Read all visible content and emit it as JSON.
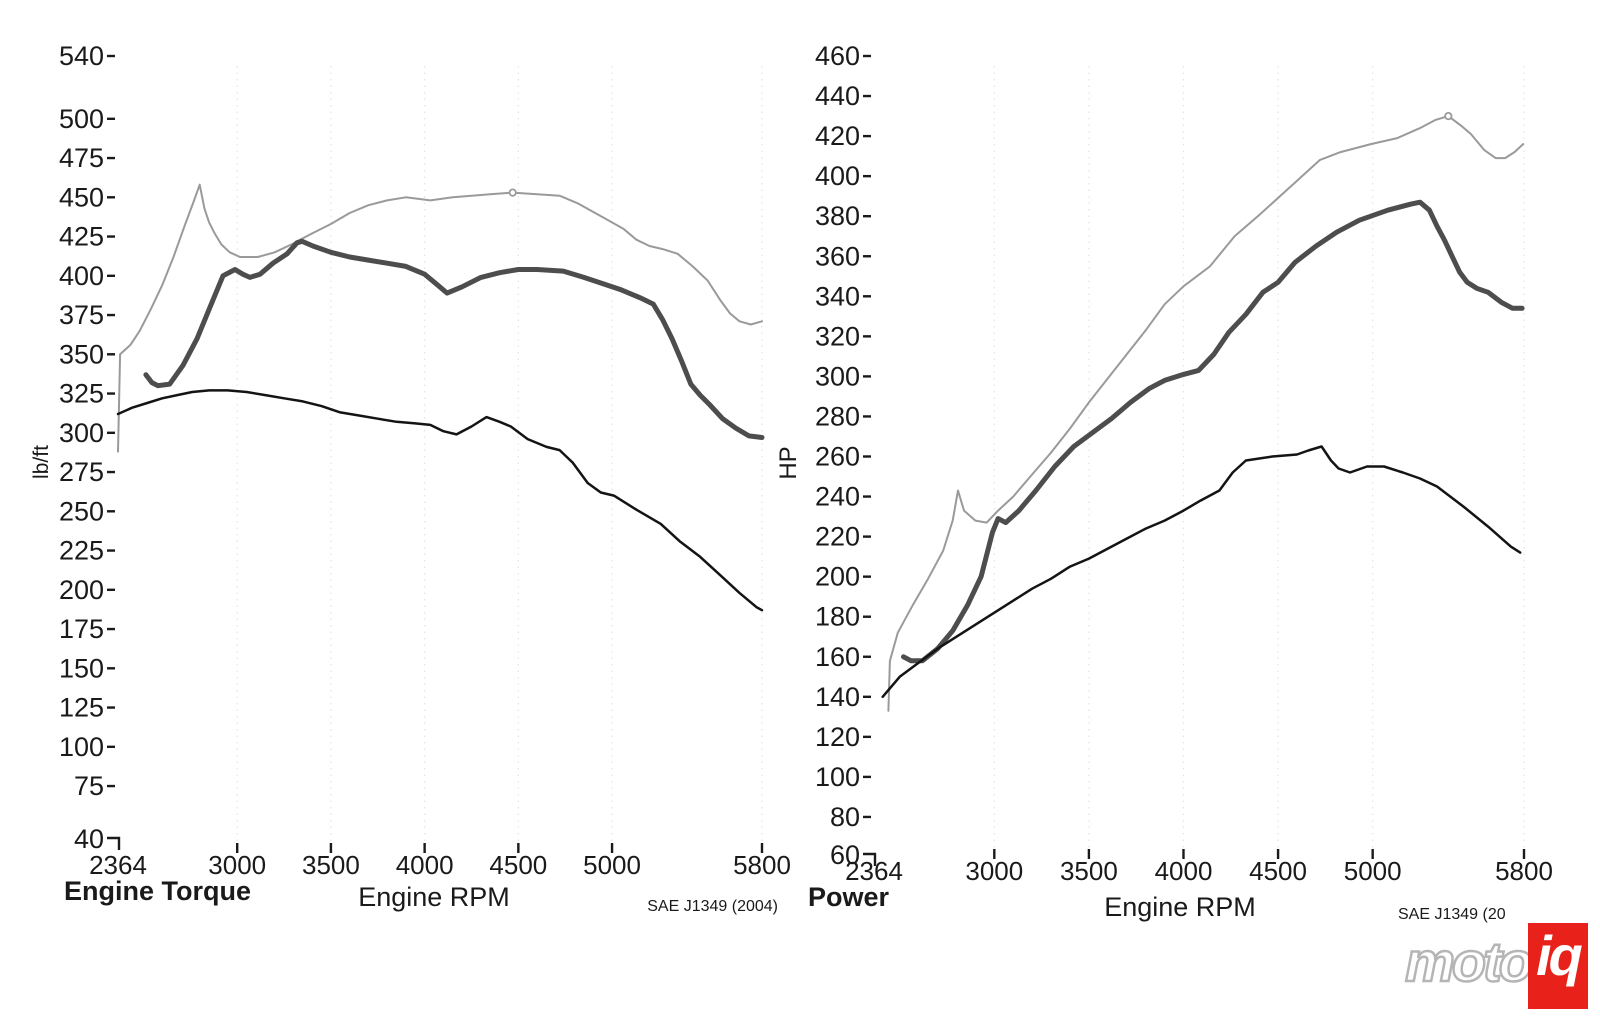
{
  "chart_data": [
    {
      "type": "line",
      "title": "Engine Torque",
      "xlabel": "Engine RPM",
      "ylabel": "lb/ft",
      "note": "SAE J1349 (2004)",
      "xlim": [
        2364,
        5800
      ],
      "ylim": [
        40,
        540
      ],
      "x_ticks": [
        2364,
        3000,
        3500,
        4000,
        4500,
        5000,
        5800
      ],
      "y_ticks": [
        540,
        500,
        475,
        450,
        425,
        400,
        375,
        350,
        325,
        300,
        275,
        250,
        225,
        200,
        175,
        150,
        125,
        100,
        75,
        40
      ],
      "grid": "faint-dotted-vertical",
      "legend": "none",
      "series": [
        {
          "name": "run-light-gray",
          "color": "#9a9a9a",
          "width": 2,
          "marker_at": [
            4470,
            453
          ],
          "points": [
            [
              2364,
              288
            ],
            [
              2375,
              350
            ],
            [
              2430,
              356
            ],
            [
              2480,
              365
            ],
            [
              2540,
              379
            ],
            [
              2600,
              394
            ],
            [
              2660,
              412
            ],
            [
              2720,
              432
            ],
            [
              2770,
              448
            ],
            [
              2800,
              458
            ],
            [
              2825,
              443
            ],
            [
              2850,
              434
            ],
            [
              2880,
              427
            ],
            [
              2915,
              420
            ],
            [
              2960,
              415
            ],
            [
              3015,
              412
            ],
            [
              3110,
              412
            ],
            [
              3200,
              415
            ],
            [
              3290,
              420
            ],
            [
              3320,
              422
            ],
            [
              3400,
              427
            ],
            [
              3500,
              433
            ],
            [
              3600,
              440
            ],
            [
              3700,
              445
            ],
            [
              3800,
              448
            ],
            [
              3900,
              450
            ],
            [
              4030,
              448
            ],
            [
              4150,
              450
            ],
            [
              4250,
              451
            ],
            [
              4350,
              452
            ],
            [
              4470,
              453
            ],
            [
              4600,
              452
            ],
            [
              4720,
              451
            ],
            [
              4820,
              446
            ],
            [
              4970,
              436
            ],
            [
              5060,
              430
            ],
            [
              5130,
              423
            ],
            [
              5200,
              419
            ],
            [
              5270,
              417
            ],
            [
              5350,
              414
            ],
            [
              5430,
              406
            ],
            [
              5510,
              397
            ],
            [
              5580,
              384
            ],
            [
              5630,
              376
            ],
            [
              5680,
              371
            ],
            [
              5740,
              369
            ],
            [
              5800,
              371
            ]
          ]
        },
        {
          "name": "run-dark-gray-thick",
          "color": "#4d4d4d",
          "width": 5,
          "points": [
            [
              2513,
              337
            ],
            [
              2545,
              332
            ],
            [
              2577,
              330
            ],
            [
              2640,
              331
            ],
            [
              2711,
              343
            ],
            [
              2786,
              360
            ],
            [
              2855,
              380
            ],
            [
              2924,
              400
            ],
            [
              2988,
              404
            ],
            [
              3030,
              401
            ],
            [
              3068,
              399
            ],
            [
              3122,
              401
            ],
            [
              3191,
              408
            ],
            [
              3266,
              414
            ],
            [
              3319,
              421
            ],
            [
              3346,
              422
            ],
            [
              3404,
              419
            ],
            [
              3500,
              415
            ],
            [
              3600,
              412
            ],
            [
              3700,
              410
            ],
            [
              3800,
              408
            ],
            [
              3900,
              406
            ],
            [
              4000,
              401
            ],
            [
              4070,
              394
            ],
            [
              4120,
              389
            ],
            [
              4200,
              393
            ],
            [
              4300,
              399
            ],
            [
              4400,
              402
            ],
            [
              4500,
              404
            ],
            [
              4600,
              404
            ],
            [
              4740,
              403
            ],
            [
              4850,
              399
            ],
            [
              4950,
              395
            ],
            [
              5050,
              391
            ],
            [
              5150,
              386
            ],
            [
              5220,
              382
            ],
            [
              5270,
              372
            ],
            [
              5320,
              360
            ],
            [
              5370,
              346
            ],
            [
              5420,
              331
            ],
            [
              5470,
              324
            ],
            [
              5520,
              318
            ],
            [
              5590,
              309
            ],
            [
              5660,
              303
            ],
            [
              5730,
              298
            ],
            [
              5800,
              297
            ]
          ]
        },
        {
          "name": "run-black",
          "color": "#141414",
          "width": 2.5,
          "points": [
            [
              2364,
              312
            ],
            [
              2440,
              316
            ],
            [
              2520,
              319
            ],
            [
              2600,
              322
            ],
            [
              2680,
              324
            ],
            [
              2760,
              326
            ],
            [
              2850,
              327
            ],
            [
              2950,
              327
            ],
            [
              3050,
              326
            ],
            [
              3150,
              324
            ],
            [
              3250,
              322
            ],
            [
              3350,
              320
            ],
            [
              3450,
              317
            ],
            [
              3550,
              313
            ],
            [
              3650,
              311
            ],
            [
              3750,
              309
            ],
            [
              3850,
              307
            ],
            [
              3950,
              306
            ],
            [
              4030,
              305
            ],
            [
              4100,
              301
            ],
            [
              4170,
              299
            ],
            [
              4250,
              304
            ],
            [
              4330,
              310
            ],
            [
              4400,
              307
            ],
            [
              4460,
              304
            ],
            [
              4550,
              296
            ],
            [
              4650,
              291
            ],
            [
              4720,
              289
            ],
            [
              4790,
              281
            ],
            [
              4870,
              268
            ],
            [
              4940,
              262
            ],
            [
              5010,
              260
            ],
            [
              5130,
              251
            ],
            [
              5260,
              242
            ],
            [
              5360,
              231
            ],
            [
              5470,
              221
            ],
            [
              5580,
              209
            ],
            [
              5680,
              198
            ],
            [
              5770,
              189
            ],
            [
              5800,
              187
            ]
          ]
        }
      ]
    },
    {
      "type": "line",
      "title": "Power",
      "xlabel": "Engine RPM",
      "ylabel": "HP",
      "note": "SAE J1349 (20",
      "xlim": [
        2364,
        5800
      ],
      "ylim": [
        60,
        460
      ],
      "x_ticks": [
        2364,
        3000,
        3500,
        4000,
        4500,
        5000,
        5800
      ],
      "y_ticks": [
        460,
        440,
        420,
        400,
        380,
        360,
        340,
        320,
        300,
        280,
        260,
        240,
        220,
        200,
        180,
        160,
        140,
        120,
        100,
        80,
        60
      ],
      "grid": "faint-dotted-vertical",
      "legend": "none",
      "series": [
        {
          "name": "run-light-gray",
          "color": "#9a9a9a",
          "width": 2,
          "marker_at": [
            5400,
            430
          ],
          "points": [
            [
              2440,
              133
            ],
            [
              2448,
              158
            ],
            [
              2490,
              172
            ],
            [
              2570,
              186
            ],
            [
              2650,
              199
            ],
            [
              2730,
              213
            ],
            [
              2780,
              228
            ],
            [
              2808,
              243
            ],
            [
              2840,
              233
            ],
            [
              2900,
              228
            ],
            [
              2960,
              227
            ],
            [
              3020,
              233
            ],
            [
              3100,
              240
            ],
            [
              3200,
              251
            ],
            [
              3300,
              262
            ],
            [
              3400,
              274
            ],
            [
              3500,
              287
            ],
            [
              3600,
              299
            ],
            [
              3700,
              311
            ],
            [
              3800,
              323
            ],
            [
              3900,
              336
            ],
            [
              4000,
              345
            ],
            [
              4140,
              355
            ],
            [
              4270,
              370
            ],
            [
              4405,
              381
            ],
            [
              4580,
              396
            ],
            [
              4720,
              408
            ],
            [
              4830,
              412
            ],
            [
              4990,
              416
            ],
            [
              5130,
              419
            ],
            [
              5250,
              424
            ],
            [
              5330,
              428
            ],
            [
              5400,
              430
            ],
            [
              5470,
              425
            ],
            [
              5520,
              421
            ],
            [
              5590,
              413
            ],
            [
              5650,
              409
            ],
            [
              5700,
              409
            ],
            [
              5750,
              412
            ],
            [
              5795,
              416
            ]
          ]
        },
        {
          "name": "run-dark-gray-thick",
          "color": "#4d4d4d",
          "width": 5,
          "points": [
            [
              2520,
              160
            ],
            [
              2560,
              158
            ],
            [
              2620,
              158
            ],
            [
              2700,
              164
            ],
            [
              2780,
              173
            ],
            [
              2860,
              186
            ],
            [
              2930,
              200
            ],
            [
              2990,
              222
            ],
            [
              3020,
              229
            ],
            [
              3060,
              227
            ],
            [
              3130,
              233
            ],
            [
              3220,
              243
            ],
            [
              3320,
              255
            ],
            [
              3420,
              265
            ],
            [
              3520,
              272
            ],
            [
              3620,
              279
            ],
            [
              3720,
              287
            ],
            [
              3820,
              294
            ],
            [
              3900,
              298
            ],
            [
              4000,
              301
            ],
            [
              4080,
              303
            ],
            [
              4160,
              311
            ],
            [
              4240,
              322
            ],
            [
              4330,
              331
            ],
            [
              4420,
              342
            ],
            [
              4500,
              347
            ],
            [
              4590,
              357
            ],
            [
              4700,
              365
            ],
            [
              4810,
              372
            ],
            [
              4930,
              378
            ],
            [
              5080,
              383
            ],
            [
              5200,
              386
            ],
            [
              5250,
              387
            ],
            [
              5300,
              383
            ],
            [
              5340,
              375
            ],
            [
              5380,
              368
            ],
            [
              5420,
              360
            ],
            [
              5460,
              352
            ],
            [
              5500,
              347
            ],
            [
              5550,
              344
            ],
            [
              5610,
              342
            ],
            [
              5680,
              337
            ],
            [
              5740,
              334
            ],
            [
              5790,
              334
            ]
          ]
        },
        {
          "name": "run-black",
          "color": "#141414",
          "width": 2.5,
          "points": [
            [
              2410,
              140
            ],
            [
              2500,
              150
            ],
            [
              2600,
              157
            ],
            [
              2700,
              164
            ],
            [
              2800,
              170
            ],
            [
              2900,
              176
            ],
            [
              3000,
              182
            ],
            [
              3100,
              188
            ],
            [
              3200,
              194
            ],
            [
              3300,
              199
            ],
            [
              3400,
              205
            ],
            [
              3500,
              209
            ],
            [
              3600,
              214
            ],
            [
              3700,
              219
            ],
            [
              3800,
              224
            ],
            [
              3900,
              228
            ],
            [
              4000,
              233
            ],
            [
              4090,
              238
            ],
            [
              4190,
              243
            ],
            [
              4260,
              252
            ],
            [
              4330,
              258
            ],
            [
              4400,
              259
            ],
            [
              4470,
              260
            ],
            [
              4600,
              261
            ],
            [
              4660,
              263
            ],
            [
              4730,
              265
            ],
            [
              4780,
              258
            ],
            [
              4820,
              254
            ],
            [
              4880,
              252
            ],
            [
              4970,
              255
            ],
            [
              5060,
              255
            ],
            [
              5160,
              252
            ],
            [
              5250,
              249
            ],
            [
              5340,
              245
            ],
            [
              5480,
              235
            ],
            [
              5610,
              225
            ],
            [
              5730,
              215
            ],
            [
              5780,
              212
            ]
          ]
        }
      ]
    }
  ],
  "footer": {
    "logo_moto": "moto",
    "logo_iq": "iq",
    "logo_red": "#e8221a",
    "logo_outline": "#b5b5b5"
  }
}
